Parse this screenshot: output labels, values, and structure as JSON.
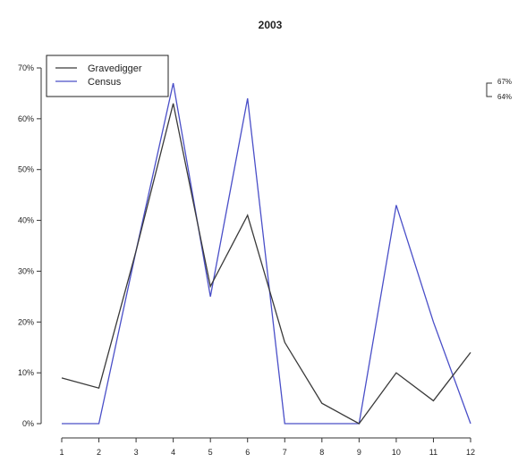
{
  "chart_data": {
    "type": "line",
    "title": "2003",
    "xlabel": "",
    "ylabel": "",
    "x": [
      1,
      2,
      3,
      4,
      5,
      6,
      7,
      8,
      9,
      10,
      11,
      12
    ],
    "x_tick_labels": [
      "1",
      "2",
      "3",
      "4",
      "5",
      "6",
      "7",
      "8",
      "9",
      "10",
      "11",
      "12"
    ],
    "ylim": [
      0,
      70
    ],
    "y_ticks": [
      0,
      10,
      20,
      30,
      40,
      50,
      60,
      70
    ],
    "y_tick_labels": [
      "0%",
      "10%",
      "20%",
      "30%",
      "40%",
      "50%",
      "60%",
      "70%"
    ],
    "grid": false,
    "legend_position": "top-left",
    "series": [
      {
        "name": "Gravedigger",
        "color": "#3a3a3a",
        "values": [
          9,
          7,
          34,
          63,
          27,
          41,
          16,
          4,
          0,
          10,
          4.5,
          14
        ]
      },
      {
        "name": "Census",
        "color": "#4a4fc8",
        "values": [
          0,
          0,
          34,
          67,
          25,
          64,
          0,
          0,
          0,
          43,
          20,
          0
        ]
      }
    ],
    "annotation": {
      "labels": [
        "67%",
        "64%"
      ],
      "values": [
        67,
        64
      ]
    }
  }
}
